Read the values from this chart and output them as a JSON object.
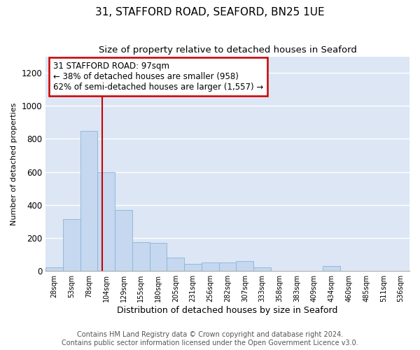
{
  "title": "31, STAFFORD ROAD, SEAFORD, BN25 1UE",
  "subtitle": "Size of property relative to detached houses in Seaford",
  "xlabel": "Distribution of detached houses by size in Seaford",
  "ylabel": "Number of detached properties",
  "footer_line1": "Contains HM Land Registry data © Crown copyright and database right 2024.",
  "footer_line2": "Contains public sector information licensed under the Open Government Licence v3.0.",
  "bar_labels": [
    "28sqm",
    "53sqm",
    "78sqm",
    "104sqm",
    "129sqm",
    "155sqm",
    "180sqm",
    "205sqm",
    "231sqm",
    "256sqm",
    "282sqm",
    "307sqm",
    "333sqm",
    "358sqm",
    "383sqm",
    "409sqm",
    "434sqm",
    "460sqm",
    "485sqm",
    "511sqm",
    "536sqm"
  ],
  "bar_values": [
    20,
    315,
    850,
    600,
    370,
    175,
    170,
    80,
    45,
    50,
    50,
    60,
    20,
    0,
    0,
    0,
    30,
    0,
    0,
    0,
    0
  ],
  "bar_color": "#c5d8f0",
  "bar_edge_color": "#8ab4d8",
  "annotation_text": "31 STAFFORD ROAD: 97sqm\n← 38% of detached houses are smaller (958)\n62% of semi-detached houses are larger (1,557) →",
  "annotation_box_color": "#ffffff",
  "annotation_box_edge": "#cc0000",
  "vline_x": 2.75,
  "vline_color": "#cc0000",
  "ylim": [
    0,
    1300
  ],
  "yticks": [
    0,
    200,
    400,
    600,
    800,
    1000,
    1200
  ],
  "plot_background": "#dce6f5",
  "title_fontsize": 11,
  "subtitle_fontsize": 9.5,
  "annot_fontsize": 8.5,
  "footer_fontsize": 7,
  "xlabel_fontsize": 9,
  "ylabel_fontsize": 8
}
